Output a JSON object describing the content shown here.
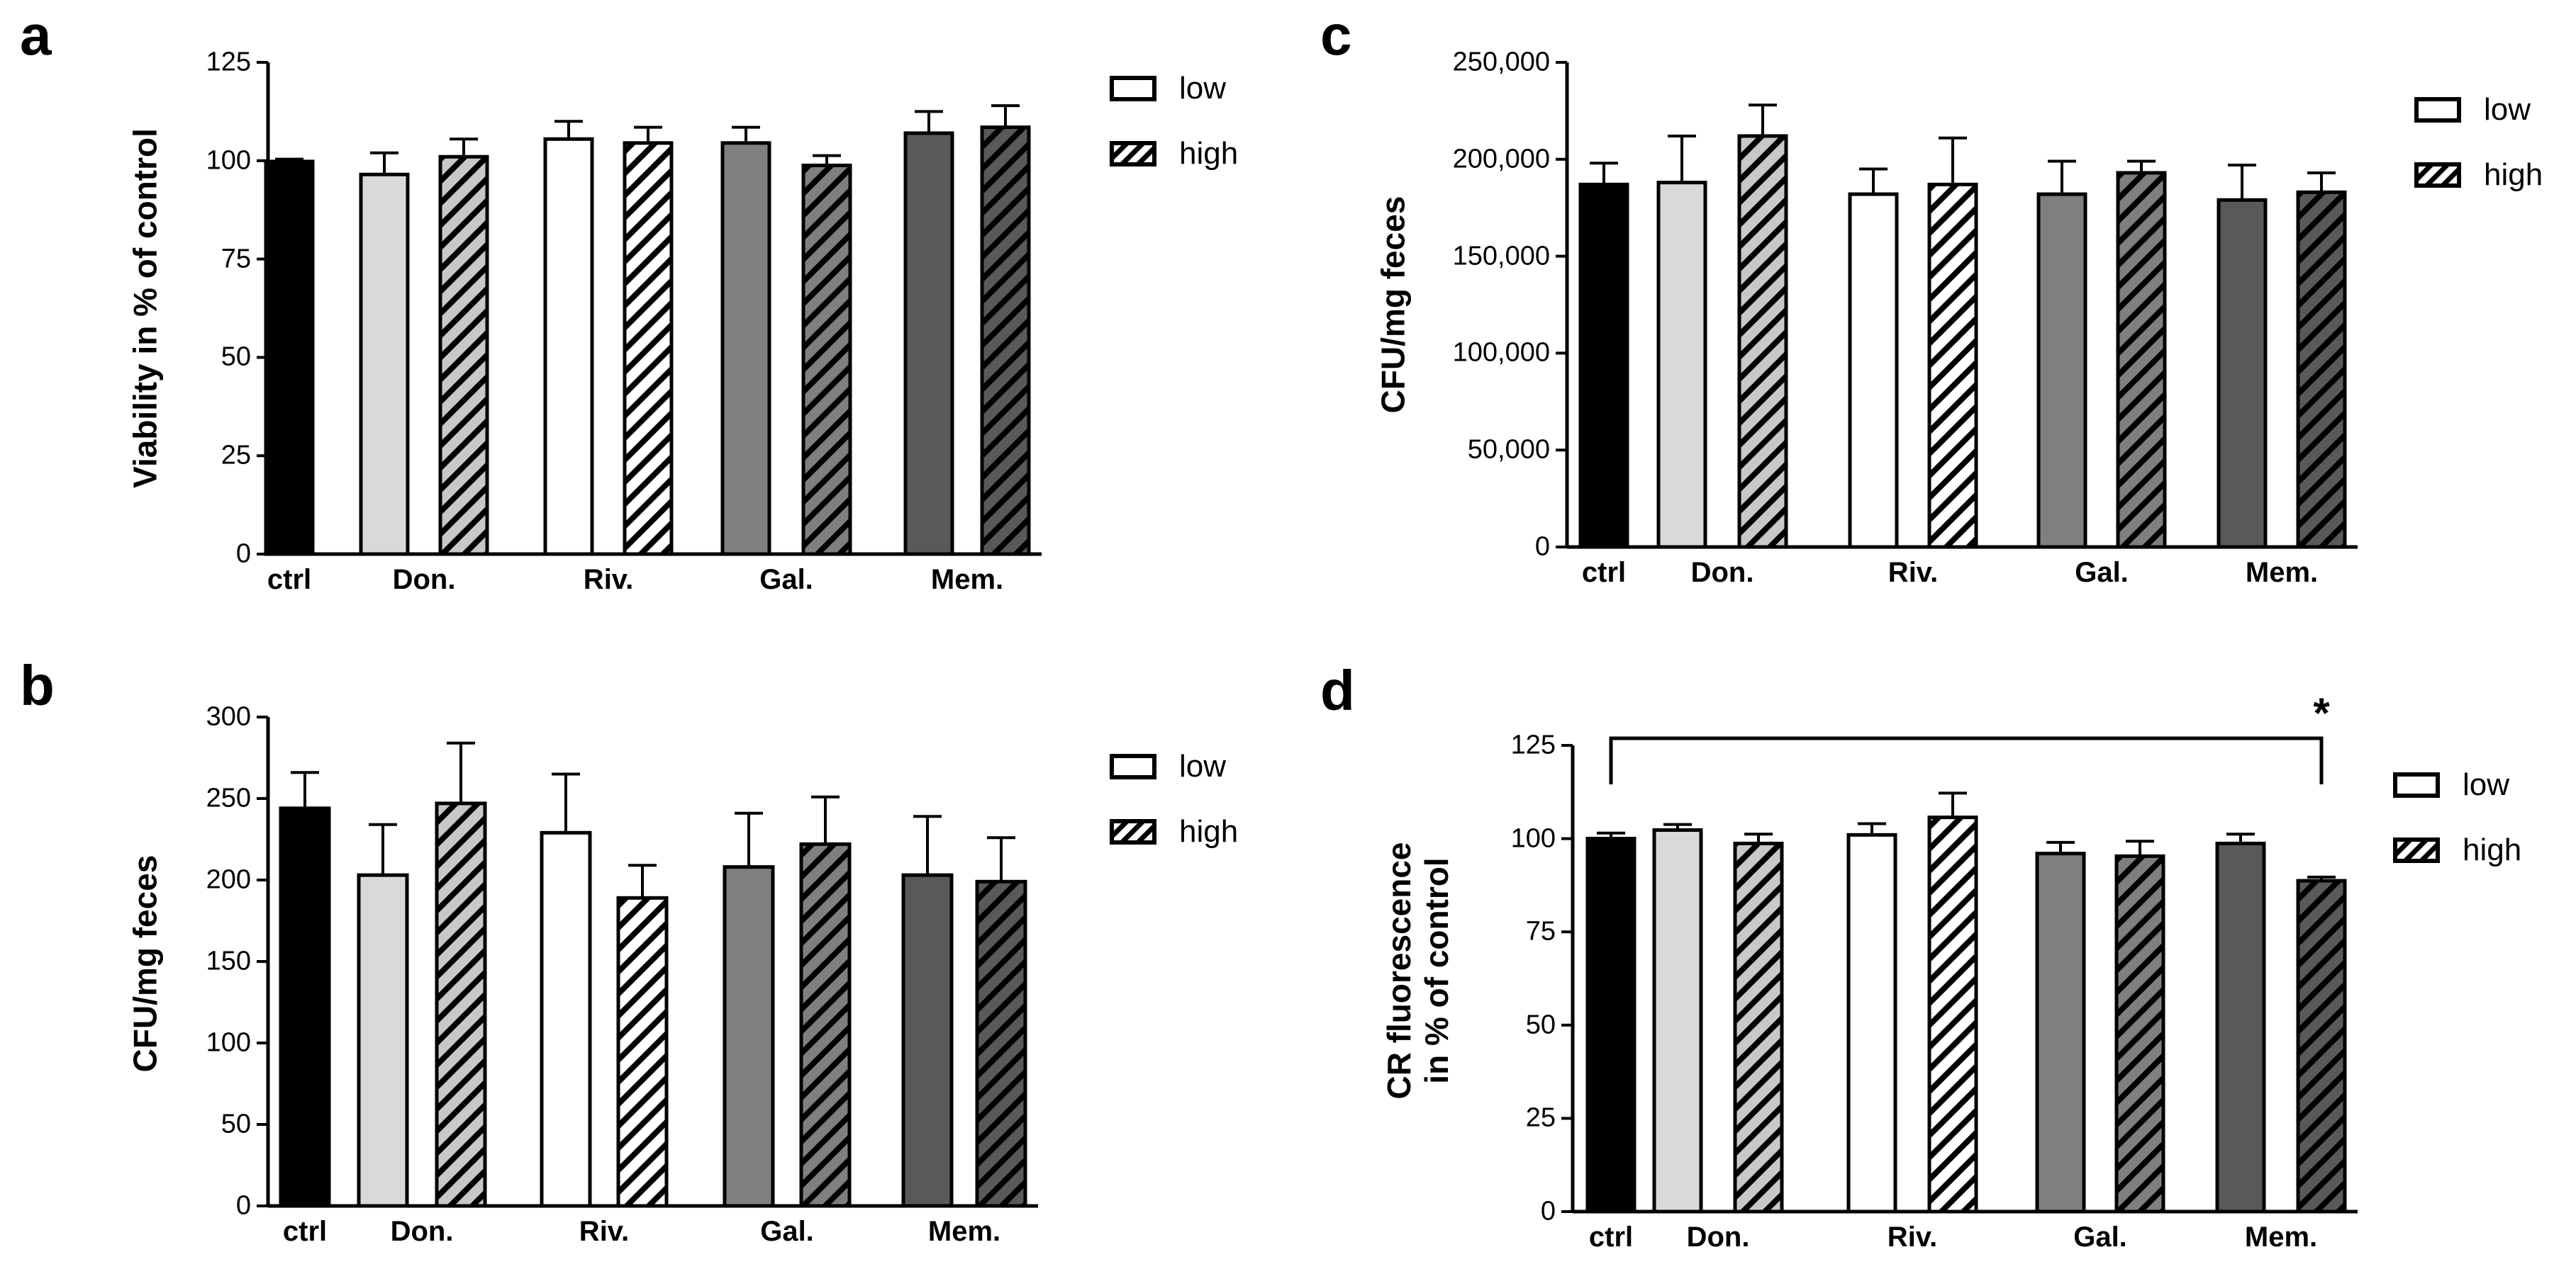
{
  "style": {
    "colors": {
      "ctrl": "#000000",
      "don_low": "#d9d9d9",
      "don_high": "#c8c8c8",
      "riv": "#ffffff",
      "gal": "#7f7f7f",
      "mem": "#595959",
      "axis": "#000000"
    }
  },
  "legend": {
    "low": "low",
    "high": "high"
  },
  "chart_data": [
    {
      "panel": "a",
      "type": "bar",
      "ylabel": "Viability in % of control",
      "ylim": [
        0,
        125
      ],
      "yticks": [
        "0",
        "25",
        "50",
        "75",
        "100",
        "125"
      ],
      "group_labels": [
        "ctrl",
        "Don.",
        "Riv.",
        "Gal.",
        "Mem."
      ],
      "bars": [
        {
          "group": "ctrl",
          "dose": "",
          "value": 99.8,
          "error": 0.6
        },
        {
          "group": "Don.",
          "dose": "low",
          "value": 96.5,
          "error": 5.5
        },
        {
          "group": "Don.",
          "dose": "high",
          "value": 101,
          "error": 4.5
        },
        {
          "group": "Riv.",
          "dose": "low",
          "value": 105.5,
          "error": 4.5
        },
        {
          "group": "Riv.",
          "dose": "high",
          "value": 104.5,
          "error": 4
        },
        {
          "group": "Gal.",
          "dose": "low",
          "value": 104.5,
          "error": 4
        },
        {
          "group": "Gal.",
          "dose": "high",
          "value": 98.8,
          "error": 2.5
        },
        {
          "group": "Mem.",
          "dose": "low",
          "value": 107,
          "error": 5.5
        },
        {
          "group": "Mem.",
          "dose": "high",
          "value": 108.5,
          "error": 5.5
        }
      ]
    },
    {
      "panel": "b",
      "type": "bar",
      "ylabel": "CFU/mg feces",
      "ylim": [
        0,
        300
      ],
      "yticks": [
        "0",
        "50",
        "100",
        "150",
        "200",
        "250",
        "300"
      ],
      "group_labels": [
        "ctrl",
        "Don.",
        "Riv.",
        "Gal.",
        "Mem."
      ],
      "bars": [
        {
          "group": "ctrl",
          "dose": "",
          "value": 244,
          "error": 22
        },
        {
          "group": "Don.",
          "dose": "low",
          "value": 203,
          "error": 31
        },
        {
          "group": "Don.",
          "dose": "high",
          "value": 247,
          "error": 37
        },
        {
          "group": "Riv.",
          "dose": "low",
          "value": 229,
          "error": 36
        },
        {
          "group": "Riv.",
          "dose": "high",
          "value": 189,
          "error": 20
        },
        {
          "group": "Gal.",
          "dose": "low",
          "value": 208,
          "error": 33
        },
        {
          "group": "Gal.",
          "dose": "high",
          "value": 222,
          "error": 29
        },
        {
          "group": "Mem.",
          "dose": "low",
          "value": 203,
          "error": 36
        },
        {
          "group": "Mem.",
          "dose": "high",
          "value": 199,
          "error": 27
        }
      ]
    },
    {
      "panel": "c",
      "type": "bar",
      "ylabel": "CFU/mg feces",
      "ylim": [
        0,
        250000
      ],
      "yticks": [
        "0",
        "50,000",
        "100,000",
        "150,000",
        "200,000",
        "250,000"
      ],
      "group_labels": [
        "ctrl",
        "Don.",
        "Riv.",
        "Gal.",
        "Mem."
      ],
      "bars": [
        {
          "group": "ctrl",
          "dose": "",
          "value": 187000,
          "error": 11000
        },
        {
          "group": "Don.",
          "dose": "low",
          "value": 188000,
          "error": 24000
        },
        {
          "group": "Don.",
          "dose": "high",
          "value": 212000,
          "error": 16000
        },
        {
          "group": "Riv.",
          "dose": "low",
          "value": 182000,
          "error": 13000
        },
        {
          "group": "Riv.",
          "dose": "high",
          "value": 187000,
          "error": 24000
        },
        {
          "group": "Gal.",
          "dose": "low",
          "value": 182000,
          "error": 17000
        },
        {
          "group": "Gal.",
          "dose": "high",
          "value": 193000,
          "error": 6000
        },
        {
          "group": "Mem.",
          "dose": "low",
          "value": 179000,
          "error": 18000
        },
        {
          "group": "Mem.",
          "dose": "high",
          "value": 183000,
          "error": 10000
        }
      ]
    },
    {
      "panel": "d",
      "type": "bar",
      "ylabel": "CR fluorescence\nin % of control",
      "ylim": [
        0,
        125
      ],
      "yticks": [
        "0",
        "25",
        "50",
        "75",
        "100",
        "125"
      ],
      "group_labels": [
        "ctrl",
        "Don.",
        "Riv.",
        "Gal.",
        "Mem."
      ],
      "bars": [
        {
          "group": "ctrl",
          "dose": "",
          "value": 100,
          "error": 1.5
        },
        {
          "group": "Don.",
          "dose": "low",
          "value": 102.3,
          "error": 1.5
        },
        {
          "group": "Don.",
          "dose": "high",
          "value": 98.7,
          "error": 2.5
        },
        {
          "group": "Riv.",
          "dose": "low",
          "value": 101,
          "error": 3
        },
        {
          "group": "Riv.",
          "dose": "high",
          "value": 105.7,
          "error": 6.5
        },
        {
          "group": "Gal.",
          "dose": "low",
          "value": 96,
          "error": 3
        },
        {
          "group": "Gal.",
          "dose": "high",
          "value": 95.3,
          "error": 4
        },
        {
          "group": "Mem.",
          "dose": "low",
          "value": 98.7,
          "error": 2.5
        },
        {
          "group": "Mem.",
          "dose": "high",
          "value": 88.7,
          "error": 1
        }
      ],
      "significance": {
        "from": "ctrl",
        "to": "Mem.",
        "label": "*"
      }
    }
  ]
}
